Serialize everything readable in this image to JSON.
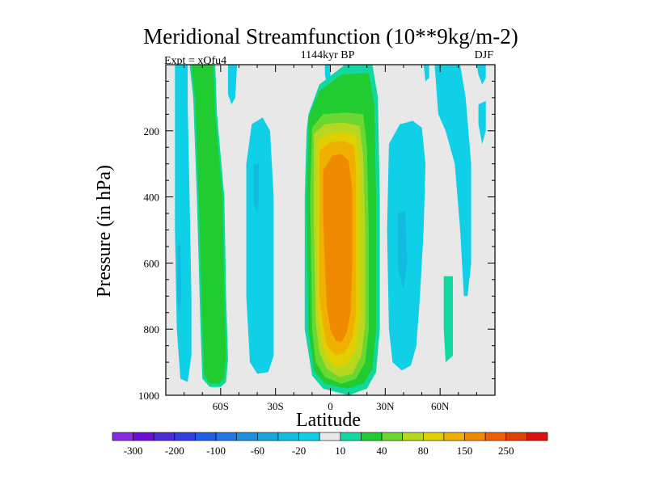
{
  "chart_data": {
    "type": "contour",
    "title": "Meridional Streamfunction (10**9kg/m-2)",
    "subtitle": "1144kyr BP",
    "left_label": "Expt = xQfu4",
    "right_label": "DJF",
    "xlabel": "Latitude",
    "ylabel": "Pressure (in hPa)",
    "xlim": [
      -90,
      90
    ],
    "ylim": [
      0,
      1000
    ],
    "y_inverted": true,
    "x_ticks": [
      {
        "value": -60,
        "label": "60S"
      },
      {
        "value": -30,
        "label": "30S"
      },
      {
        "value": 0,
        "label": "0"
      },
      {
        "value": 30,
        "label": "30N"
      },
      {
        "value": 60,
        "label": "60N"
      }
    ],
    "y_ticks": [
      {
        "value": 200,
        "label": "200"
      },
      {
        "value": 400,
        "label": "400"
      },
      {
        "value": 600,
        "label": "600"
      },
      {
        "value": 800,
        "label": "800"
      },
      {
        "value": 1000,
        "label": "1000"
      }
    ],
    "levels": [
      -300,
      -250,
      -200,
      -150,
      -100,
      -80,
      -60,
      -40,
      -20,
      -10,
      10,
      20,
      40,
      60,
      80,
      100,
      150,
      200,
      250,
      300
    ],
    "colorbar_labels": [
      "-300",
      "-200",
      "-100",
      "-60",
      "-20",
      "10",
      "40",
      "80",
      "150",
      "250"
    ],
    "colors": [
      "#8a2be2",
      "#6a0ddb",
      "#4b2ad8",
      "#3040e0",
      "#1f5fe8",
      "#1f78e6",
      "#1e90e0",
      "#17a6e0",
      "#12bce0",
      "#10d0e8",
      "#e8e8e8",
      "#10d8a0",
      "#20cc30",
      "#6ad830",
      "#b8d820",
      "#e0d000",
      "#f0b000",
      "#f08a00",
      "#f06000",
      "#e04000",
      "#e01010"
    ],
    "background_color": "#e8e8e8",
    "regions": [
      {
        "name": "sh-polar-cell",
        "level": -20,
        "pts": [
          [
            -85,
            0
          ],
          [
            -78,
            0
          ],
          [
            -78,
            120
          ],
          [
            -77,
            400
          ],
          [
            -76,
            700
          ],
          [
            -76,
            880
          ],
          [
            -78,
            960
          ],
          [
            -82,
            950
          ],
          [
            -84,
            800
          ],
          [
            -85,
            500
          ]
        ]
      },
      {
        "name": "sh-polar-cell-core",
        "level": -40,
        "pts": [
          [
            -83.5,
            550
          ],
          [
            -82,
            540
          ],
          [
            -81.5,
            700
          ],
          [
            -82.5,
            760
          ],
          [
            -83.8,
            700
          ]
        ]
      },
      {
        "name": "sh-ferrel-outer",
        "level": 10,
        "pts": [
          [
            -77,
            0
          ],
          [
            -63,
            0
          ],
          [
            -62,
            150
          ],
          [
            -58,
            400
          ],
          [
            -57,
            700
          ],
          [
            -56,
            890
          ],
          [
            -57,
            960
          ],
          [
            -60,
            975
          ],
          [
            -66,
            975
          ],
          [
            -70,
            950
          ],
          [
            -71,
            800
          ],
          [
            -73,
            400
          ],
          [
            -75,
            100
          ]
        ]
      },
      {
        "name": "sh-ferrel-cell",
        "level": 20,
        "pts": [
          [
            -76,
            0
          ],
          [
            -64,
            0
          ],
          [
            -63,
            150
          ],
          [
            -59,
            400
          ],
          [
            -58,
            700
          ],
          [
            -57,
            880
          ],
          [
            -58,
            950
          ],
          [
            -61,
            965
          ],
          [
            -66,
            965
          ],
          [
            -69,
            940
          ],
          [
            -70,
            800
          ],
          [
            -72,
            400
          ],
          [
            -74,
            100
          ]
        ]
      },
      {
        "name": "sh-cell-upper-blob",
        "level": -20,
        "pts": [
          [
            -56,
            0
          ],
          [
            -51,
            0
          ],
          [
            -52,
            100
          ],
          [
            -54,
            120
          ],
          [
            -56,
            90
          ]
        ]
      },
      {
        "name": "sh-strong-cell",
        "level": -20,
        "pts": [
          [
            -43,
            180
          ],
          [
            -37,
            160
          ],
          [
            -33,
            200
          ],
          [
            -31,
            400
          ],
          [
            -31,
            700
          ],
          [
            -31,
            880
          ],
          [
            -34,
            930
          ],
          [
            -40,
            935
          ],
          [
            -44,
            900
          ],
          [
            -46,
            700
          ],
          [
            -46,
            300
          ]
        ]
      },
      {
        "name": "sh-strong-cell-core",
        "level": -40,
        "pts": [
          [
            -42,
            300
          ],
          [
            -39,
            300
          ],
          [
            -39,
            400
          ],
          [
            -40,
            450
          ],
          [
            -42,
            420
          ]
        ]
      },
      {
        "name": "upper-blob-a",
        "level": -20,
        "pts": [
          [
            -3,
            0
          ],
          [
            0,
            0
          ],
          [
            0,
            40
          ],
          [
            -2,
            60
          ],
          [
            -3,
            30
          ]
        ]
      },
      {
        "name": "upper-blob-b",
        "level": -20,
        "pts": [
          [
            7,
            0
          ],
          [
            10,
            0
          ],
          [
            10,
            30
          ],
          [
            8,
            40
          ]
        ]
      },
      {
        "name": "hadley-10",
        "level": 10,
        "pts": [
          [
            -12,
            150
          ],
          [
            -6,
            60
          ],
          [
            8,
            0
          ],
          [
            23,
            0
          ],
          [
            26,
            100
          ],
          [
            27,
            400
          ],
          [
            27,
            800
          ],
          [
            25,
            930
          ],
          [
            20,
            980
          ],
          [
            10,
            1000
          ],
          [
            -4,
            980
          ],
          [
            -10,
            940
          ],
          [
            -14,
            800
          ],
          [
            -14,
            400
          ],
          [
            -13,
            200
          ]
        ]
      },
      {
        "name": "hadley-20",
        "level": 20,
        "pts": [
          [
            -12,
            160
          ],
          [
            -6,
            80
          ],
          [
            6,
            30
          ],
          [
            21,
            25
          ],
          [
            24,
            120
          ],
          [
            25,
            400
          ],
          [
            25,
            800
          ],
          [
            23,
            920
          ],
          [
            18,
            965
          ],
          [
            9,
            980
          ],
          [
            -3,
            965
          ],
          [
            -9,
            925
          ],
          [
            -12,
            800
          ],
          [
            -13,
            400
          ],
          [
            -12,
            220
          ]
        ]
      },
      {
        "name": "hadley-40",
        "level": 40,
        "pts": [
          [
            -10,
            190
          ],
          [
            -4,
            150
          ],
          [
            8,
            145
          ],
          [
            18,
            150
          ],
          [
            20,
            250
          ],
          [
            21,
            500
          ],
          [
            21,
            800
          ],
          [
            19,
            900
          ],
          [
            14,
            950
          ],
          [
            6,
            965
          ],
          [
            -3,
            945
          ],
          [
            -8,
            900
          ],
          [
            -10,
            800
          ],
          [
            -11,
            400
          ]
        ]
      },
      {
        "name": "hadley-60",
        "level": 60,
        "pts": [
          [
            -9,
            210
          ],
          [
            -3,
            180
          ],
          [
            7,
            175
          ],
          [
            16,
            185
          ],
          [
            18,
            280
          ],
          [
            19,
            500
          ],
          [
            19,
            790
          ],
          [
            17,
            880
          ],
          [
            12,
            935
          ],
          [
            5,
            945
          ],
          [
            -2,
            920
          ],
          [
            -6,
            870
          ],
          [
            -8,
            780
          ],
          [
            -9,
            500
          ]
        ]
      },
      {
        "name": "hadley-80",
        "level": 80,
        "pts": [
          [
            -7,
            230
          ],
          [
            -1,
            210
          ],
          [
            7,
            205
          ],
          [
            14,
            215
          ],
          [
            16,
            300
          ],
          [
            16,
            500
          ],
          [
            16,
            770
          ],
          [
            14,
            860
          ],
          [
            9,
            905
          ],
          [
            3,
            915
          ],
          [
            -2,
            890
          ],
          [
            -5,
            830
          ],
          [
            -7,
            740
          ],
          [
            -7,
            500
          ]
        ]
      },
      {
        "name": "hadley-100",
        "level": 100,
        "pts": [
          [
            -6,
            260
          ],
          [
            0,
            235
          ],
          [
            7,
            230
          ],
          [
            13,
            245
          ],
          [
            14,
            320
          ],
          [
            14,
            500
          ],
          [
            14,
            750
          ],
          [
            12,
            830
          ],
          [
            8,
            870
          ],
          [
            3,
            880
          ],
          [
            -2,
            850
          ],
          [
            -4,
            790
          ],
          [
            -6,
            700
          ],
          [
            -6,
            500
          ]
        ]
      },
      {
        "name": "hadley-150",
        "level": 150,
        "pts": [
          [
            -4,
            320
          ],
          [
            1,
            275
          ],
          [
            6,
            270
          ],
          [
            10,
            290
          ],
          [
            12,
            380
          ],
          [
            12,
            600
          ],
          [
            11,
            750
          ],
          [
            9,
            810
          ],
          [
            6,
            840
          ],
          [
            3,
            835
          ],
          [
            0,
            800
          ],
          [
            -2,
            730
          ],
          [
            -3,
            600
          ],
          [
            -4,
            450
          ]
        ]
      },
      {
        "name": "nh-cell",
        "level": -20,
        "pts": [
          [
            32,
            240
          ],
          [
            38,
            180
          ],
          [
            45,
            170
          ],
          [
            50,
            190
          ],
          [
            52,
            300
          ],
          [
            51,
            500
          ],
          [
            49,
            700
          ],
          [
            47,
            850
          ],
          [
            44,
            910
          ],
          [
            39,
            925
          ],
          [
            34,
            900
          ],
          [
            32,
            800
          ],
          [
            31,
            500
          ]
        ]
      },
      {
        "name": "nh-cell-core",
        "level": -40,
        "pts": [
          [
            37,
            450
          ],
          [
            41,
            440
          ],
          [
            42,
            600
          ],
          [
            40,
            680
          ],
          [
            37,
            620
          ]
        ]
      },
      {
        "name": "nh-polar-cell",
        "level": -20,
        "pts": [
          [
            57,
            0
          ],
          [
            71,
            0
          ],
          [
            74,
            100
          ],
          [
            77,
            300
          ],
          [
            77,
            600
          ],
          [
            75,
            700
          ],
          [
            73,
            700
          ],
          [
            71,
            500
          ],
          [
            68,
            300
          ],
          [
            63,
            200
          ],
          [
            59,
            150
          ]
        ]
      },
      {
        "name": "nh-blob-a",
        "level": -20,
        "pts": [
          [
            80,
            0
          ],
          [
            85,
            0
          ],
          [
            85,
            40
          ],
          [
            83,
            60
          ],
          [
            81,
            30
          ]
        ]
      },
      {
        "name": "nh-blob-b",
        "level": -20,
        "pts": [
          [
            81,
            120
          ],
          [
            85,
            110
          ],
          [
            85,
            200
          ],
          [
            83,
            240
          ],
          [
            81,
            180
          ]
        ]
      },
      {
        "name": "nh-blob-c",
        "level": -20,
        "pts": [
          [
            51,
            0
          ],
          [
            54,
            0
          ],
          [
            54,
            40
          ],
          [
            52,
            50
          ]
        ]
      },
      {
        "name": "nh-polar-direct",
        "level": 10,
        "pts": [
          [
            62,
            640
          ],
          [
            67,
            640
          ],
          [
            67,
            880
          ],
          [
            63,
            900
          ],
          [
            62,
            800
          ]
        ]
      }
    ]
  }
}
